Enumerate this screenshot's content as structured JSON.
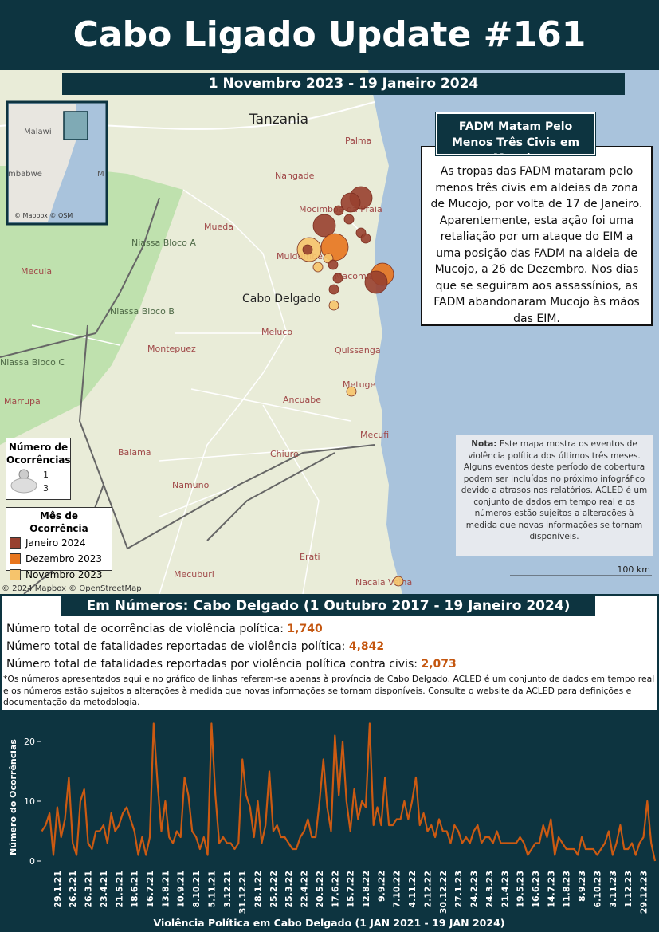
{
  "header": {
    "title": "Cabo Ligado Update #161",
    "date_range": "1 Novembro 2023 - 19 Janeiro 2024"
  },
  "map": {
    "labels": [
      "Tanzania",
      "Palma",
      "Nangade",
      "Mocimboa da Praia",
      "Mueda",
      "Muidumbe",
      "Macomia",
      "Cabo Delgado",
      "Niassa Bloco A",
      "Niassa Bloco B",
      "Niassa Bloco C",
      "Mecula",
      "Meluco",
      "Quissanga",
      "Montepuez",
      "Ancuabe",
      "Metuge",
      "Marrupa",
      "Mecufi",
      "Balama",
      "Chiure",
      "Namuno",
      "Erati",
      "Mecuburi",
      "Nacala Velha"
    ],
    "inset_labels": [
      "Malawi",
      "mbabwe",
      "M"
    ],
    "inset_attribution": "© Mapbox © OSM",
    "attribution": "© 2024 Mapbox © OpenStreetMap",
    "scale": "100 km"
  },
  "callout": {
    "title": "FADM Matam Pelo Menos Três Civis em Mucojo",
    "text": "As tropas das FADM mataram pelo menos três civis em aldeias da zona de Mucojo, por volta de 17 de Janeiro. Aparentemente, esta ação foi uma retaliação por um ataque do EIM a uma posição das FADM na aldeia de Mucojo, a 26 de Dezembro. Nos dias que se seguiram aos assassínios, as FADM abandonaram Mucojo às mãos das EIM."
  },
  "note": {
    "label": "Nota:",
    "text": "Este mapa mostra os eventos de violência política dos últimos três meses. Alguns eventos deste período de cobertura podem ser incluídos no próximo infográfico devido a atrasos nos relatórios. ACLED é um conjunto de dados em tempo real e os números estão sujeitos a alterações à medida que novas informações se tornam disponíveis."
  },
  "legend_size": {
    "title": "Número de Ocorrências",
    "items": [
      1,
      3
    ]
  },
  "legend_month": {
    "title": "Mês de Ocorrência",
    "items": [
      {
        "name": "Janeiro 2024",
        "color": "#98402f"
      },
      {
        "name": "Dezembro 2023",
        "color": "#e8761e"
      },
      {
        "name": "Novembro 2023",
        "color": "#f6c46c"
      }
    ]
  },
  "numbers": {
    "heading": "Em Números: Cabo Delgado (1 Outubro 2017 - 19 Janeiro 2024)",
    "rows": [
      {
        "label": "Número total de ocorrências de violência política:",
        "value": "1,740"
      },
      {
        "label": "Número total de fatalidades reportadas de violência política:",
        "value": "4,842"
      },
      {
        "label": "Número total de fatalidades reportadas por violência política contra civis:",
        "value": "2,073"
      }
    ],
    "footnote": "*Os números apresentados aqui e no gráfico de linhas referem-se apenas à província de Cabo Delgado. ACLED é um conjunto de dados em tempo real e os números estão sujeitos a alterações à medida que novas informações se tornam disponíveis. Consulte o website da ACLED para definições e documentação da metodologia."
  },
  "chart_data": {
    "type": "line",
    "x_label": "Violência Política em Cabo Delgado (1 JAN 2021 - 19 JAN 2024)",
    "y_label": "Número do Ocorrências",
    "categories": [
      null,
      null,
      null,
      null,
      "29.1.21",
      null,
      null,
      null,
      "26.2.21",
      null,
      null,
      null,
      "26.3.21",
      null,
      null,
      null,
      "23.4.21",
      null,
      null,
      null,
      "21.5.21",
      null,
      null,
      null,
      "18.6.21",
      null,
      null,
      null,
      "16.7.21",
      null,
      null,
      null,
      "13.8.21",
      null,
      null,
      null,
      "10.9.21",
      null,
      null,
      null,
      "8.10.21",
      null,
      null,
      null,
      "5.11.21",
      null,
      null,
      null,
      "3.12.21",
      null,
      null,
      null,
      "31.12.21",
      null,
      null,
      null,
      "28.1.22",
      null,
      null,
      null,
      "25.2.22",
      null,
      null,
      null,
      "25.3.22",
      null,
      null,
      null,
      "22.4.22",
      null,
      null,
      null,
      "20.5.22",
      null,
      null,
      null,
      "17.6.22",
      null,
      null,
      null,
      "15.7.22",
      null,
      null,
      null,
      "12.8.22",
      null,
      null,
      null,
      "9.9.22",
      null,
      null,
      null,
      "7.10.22",
      null,
      null,
      null,
      "4.11.22",
      null,
      null,
      null,
      "2.12.22",
      null,
      null,
      null,
      "30.12.22",
      null,
      null,
      null,
      "27.1.23",
      null,
      null,
      null,
      "24.2.23",
      null,
      null,
      null,
      "24.3.23",
      null,
      null,
      null,
      "21.4.23",
      null,
      null,
      null,
      "19.5.23",
      null,
      null,
      null,
      "16.6.23",
      null,
      null,
      null,
      "14.7.23",
      null,
      null,
      null,
      "11.8.23",
      null,
      null,
      null,
      "8.9.23",
      null,
      null,
      null,
      "6.10.23",
      null,
      null,
      null,
      "3.11.23",
      null,
      null,
      null,
      "1.12.23",
      null,
      null,
      null,
      "29.12.23",
      null,
      null,
      null
    ],
    "values": [
      5,
      6,
      8,
      1,
      9,
      4,
      7,
      14,
      3,
      1,
      10,
      12,
      3,
      2,
      5,
      5,
      6,
      3,
      8,
      5,
      6,
      8,
      9,
      7,
      5,
      1,
      4,
      1,
      4,
      23,
      13,
      5,
      10,
      4,
      3,
      5,
      4,
      14,
      11,
      5,
      4,
      2,
      4,
      1,
      23,
      11,
      3,
      4,
      3,
      3,
      2,
      3,
      17,
      11,
      9,
      4,
      10,
      3,
      6,
      15,
      5,
      6,
      4,
      4,
      3,
      2,
      2,
      4,
      5,
      7,
      4,
      4,
      10,
      17,
      9,
      5,
      21,
      11,
      20,
      10,
      5,
      12,
      7,
      10,
      9,
      23,
      6,
      9,
      6,
      14,
      6,
      6,
      7,
      7,
      10,
      7,
      10,
      14,
      6,
      8,
      5,
      6,
      4,
      7,
      5,
      5,
      3,
      6,
      5,
      3,
      4,
      3,
      5,
      6,
      3,
      4,
      4,
      3,
      5,
      3,
      3,
      3,
      3,
      3,
      4,
      3,
      1,
      2,
      3,
      3,
      6,
      4,
      7,
      1,
      4,
      3,
      2,
      2,
      2,
      1,
      4,
      2,
      2,
      2,
      1,
      2,
      3,
      5,
      1,
      3,
      6,
      2,
      2,
      3,
      1,
      3,
      4,
      10,
      3,
      0
    ],
    "color": "#cc5a12",
    "ylim": [
      0,
      24
    ],
    "yticks": [
      0,
      10,
      20
    ]
  }
}
